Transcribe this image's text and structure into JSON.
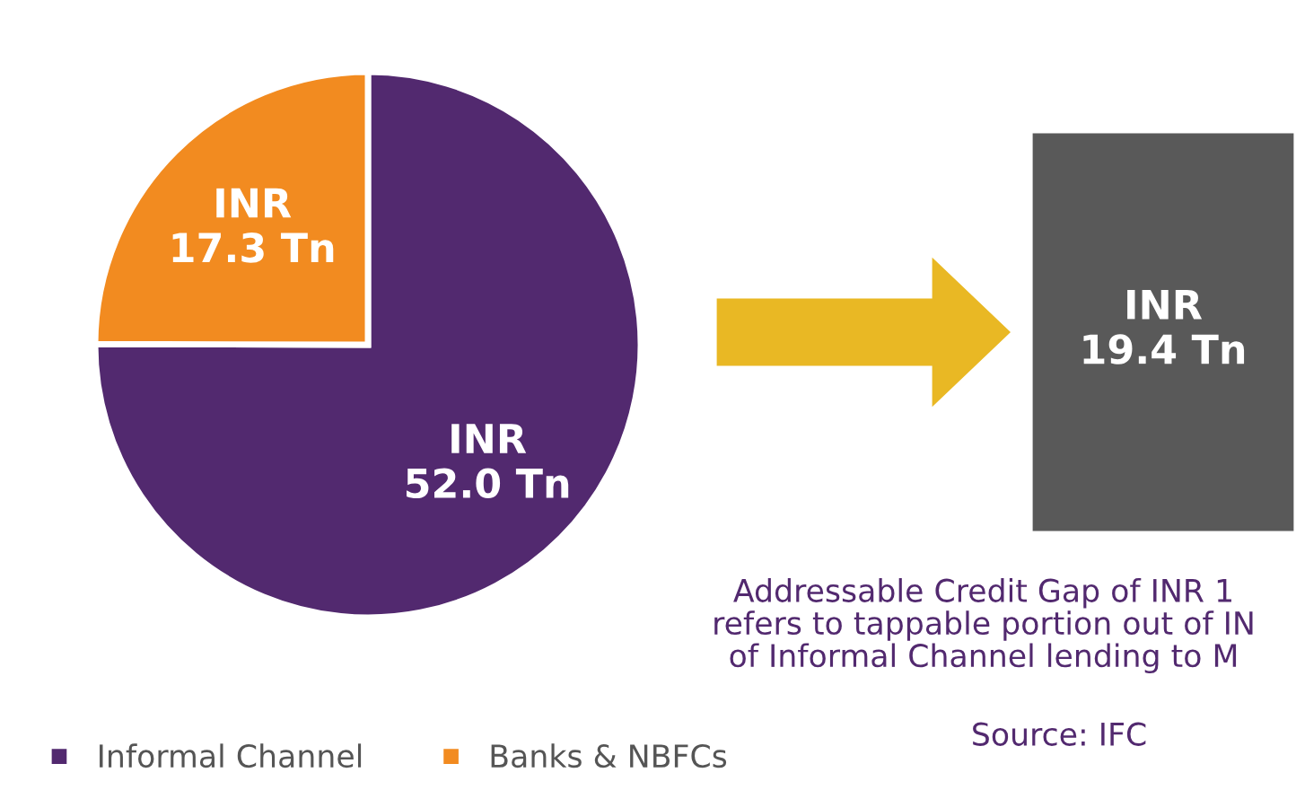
{
  "chart_data": {
    "type": "pie",
    "categories": [
      "Informal Channel",
      "Banks & NBFCs"
    ],
    "values": [
      52.0,
      17.3
    ],
    "colors": [
      "#52296f",
      "#f28b20"
    ],
    "value_labels": [
      "INR\n52.0 Tn",
      "INR\n17.3 Tn"
    ],
    "legend": "bottom left",
    "annotations": [
      "INR\n19.4 Tn",
      "Addressable Credit Gap of INR 1\nrefers to tappable portion out of IN\nof Informal Channel lending to M",
      "Source: IFC"
    ]
  }
}
